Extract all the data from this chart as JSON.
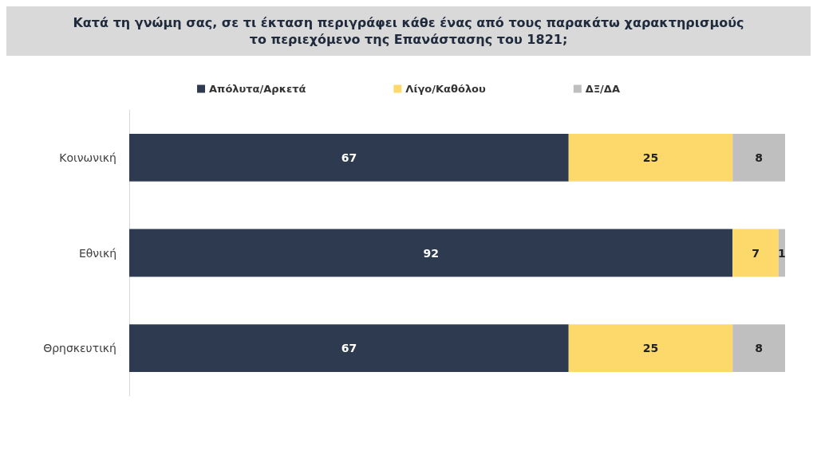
{
  "chart_data": {
    "type": "bar",
    "orientation": "horizontal",
    "stacked": true,
    "title": "Κατά τη γνώμη σας, σε τι έκταση περιγράφει κάθε ένας από τους παρακάτω χαρακτηρισμούς το περιεχόμενο της Επανάστασης του 1821;",
    "categories": [
      "Κοινωνική",
      "Εθνική",
      "Θρησκευτική"
    ],
    "series": [
      {
        "name": "Απόλυτα/Αρκετά",
        "color": "#2e3a4f",
        "values": [
          67,
          92,
          67
        ]
      },
      {
        "name": "Λίγο/Καθόλου",
        "color": "#fcd96a",
        "values": [
          25,
          7,
          25
        ]
      },
      {
        "name": "ΔΞ/ΔΑ",
        "color": "#bfbfbf",
        "values": [
          8,
          1,
          8
        ]
      }
    ],
    "data_labels": true,
    "legend": "top"
  }
}
